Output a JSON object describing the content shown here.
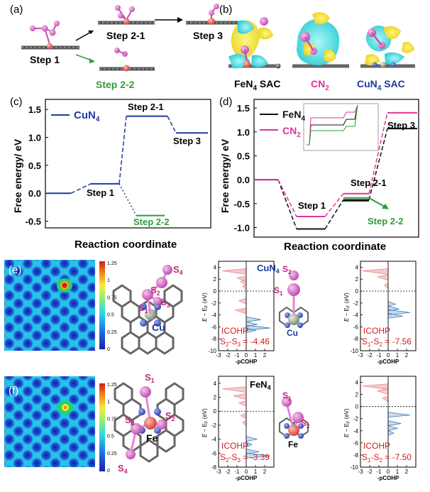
{
  "panels": {
    "a": {
      "label": "(a)",
      "step1": "Step 1",
      "step2_1": "Step 2-1",
      "step3": "Step 3",
      "step2_2": "Step 2-2"
    },
    "b": {
      "label": "(b)",
      "names": [
        "FeN",
        "CN",
        "CuN"
      ],
      "subs": [
        "4",
        "2",
        "4"
      ],
      "suffix": [
        "SAC",
        "",
        "SAC"
      ],
      "colors": [
        "#000000",
        "#e0339a",
        "#1f3a9e"
      ]
    },
    "c": {
      "label": "(c)",
      "legend": "CuN",
      "legend_sub": "4"
    },
    "d": {
      "label": "(d)",
      "legend1": "FeN",
      "legend1_sub": "4",
      "legend2": "CN",
      "legend2_sub": "2"
    },
    "e": {
      "label": "(e)",
      "compound": "CuN",
      "compound_sub": "4",
      "metal": "Cu"
    },
    "f": {
      "label": "(f)",
      "compound": "FeN",
      "compound_sub": "4",
      "metal": "Fe"
    }
  },
  "colorbar": {
    "ticks": [
      "1.25",
      "1",
      "0.75",
      "0.5",
      "0.25",
      "0"
    ]
  },
  "cohp": {
    "xlabel": "-pCOHP",
    "ylabel_parts": [
      "E",
      " − E",
      "F",
      " (eV)"
    ],
    "xticks": [
      "-3",
      "-2",
      "-1",
      "0",
      "1",
      "2"
    ],
    "yticks_top": [
      "4",
      "2",
      "0",
      "-2",
      "-4",
      "-6",
      "-8",
      "-10"
    ],
    "yticks_bottom": [
      "4",
      "2",
      "0",
      "-2",
      "-4",
      "-6",
      "-8"
    ],
    "icohp_title": "ICOHP",
    "values": [
      {
        "pair": "S2-S3",
        "a": "2",
        "b": "3",
        "value": "-4.46"
      },
      {
        "pair": "S1-S2",
        "a": "1",
        "b": "2",
        "value": "-7.56"
      },
      {
        "pair": "S2-S3",
        "a": "2",
        "b": "3",
        "value": "-3.39"
      },
      {
        "pair": "S1-S2",
        "a": "1",
        "b": "2",
        "value": "-7.50"
      }
    ]
  },
  "chart_data": [
    {
      "type": "line",
      "panel": "c",
      "ylabel": "Free energy/ eV",
      "xlabel": "Reaction coordinate",
      "ylim": [
        -0.62,
        1.68
      ],
      "yticks": [
        "1.5",
        "1.0",
        "0.5",
        "0.0",
        "-0.5"
      ],
      "series": [
        {
          "name": "CuN4",
          "color": "#1f3a9e",
          "levels": [
            0.0,
            0.17,
            1.38,
            1.08
          ],
          "labels": [
            "",
            "Step 1",
            "Step 2-1",
            "Step 3"
          ]
        },
        {
          "branch": true,
          "color": "#2e9d3a",
          "level": -0.4,
          "label": "Step 2-2"
        }
      ]
    },
    {
      "type": "line",
      "panel": "d",
      "ylabel": "Free energy/ eV",
      "xlabel": "Reaction coordinate",
      "ylim": [
        -1.2,
        1.68
      ],
      "yticks": [
        "1.5",
        "1.0",
        "0.5",
        "0.0",
        "-0.5",
        "-1.0"
      ],
      "series": [
        {
          "name": "FeN4",
          "color": "#111111",
          "levels": [
            0.0,
            -1.03,
            -0.42,
            1.07
          ]
        },
        {
          "name": "CN2",
          "color": "#e0339a",
          "levels": [
            0.0,
            -0.77,
            -0.29,
            1.4
          ]
        },
        {
          "branch": true,
          "color": "#2e9d3a",
          "level": -0.38
        }
      ],
      "step_labels": [
        "Step 1",
        "Step 2-1",
        "Step 3",
        "Step 2-2"
      ]
    }
  ]
}
